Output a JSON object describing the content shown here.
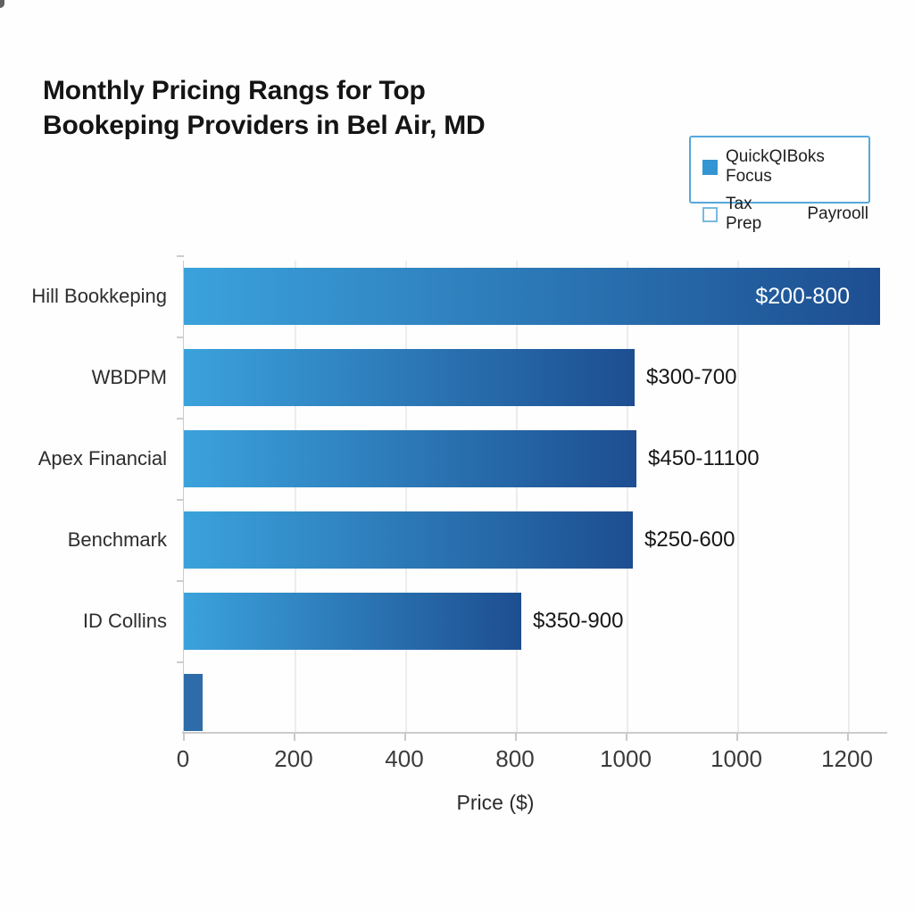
{
  "chart_data": {
    "type": "bar",
    "orientation": "horizontal",
    "title": "Monthly Pricing Rangs for Top\nBookeping Providers in Bel Air, MD",
    "xlabel": "Price ($)",
    "x_tick_labels": [
      "0",
      "200",
      "400",
      "800",
      "1000",
      "1000",
      "1200"
    ],
    "grid": true,
    "legend": {
      "position": "top-right",
      "items": [
        {
          "label": "QuickQIBoks Focus",
          "swatch": "filled"
        },
        {
          "label": "Tax Prep",
          "swatch": "outline"
        },
        {
          "label": "Payrooll",
          "swatch": "none"
        }
      ]
    },
    "bars": [
      {
        "category": "Hill Bookkeping",
        "label": "$200-800",
        "length_pct": 100,
        "label_inside": true
      },
      {
        "category": "WBDPM",
        "label": "$300-700",
        "length_pct": 64.7,
        "label_inside": false
      },
      {
        "category": "Apex Financial",
        "label": "$450-11100",
        "length_pct": 65.0,
        "label_inside": false
      },
      {
        "category": "Benchmark",
        "label": "$250-600",
        "length_pct": 64.5,
        "label_inside": false
      },
      {
        "category": "ID Collins",
        "label": "$350-900",
        "length_pct": 48.5,
        "label_inside": false
      },
      {
        "category": "",
        "label": "",
        "length_pct": 2.7,
        "label_inside": false,
        "solid_color": "#2d6ca9"
      }
    ],
    "colors": {
      "bar_gradient_start": "#3ba2dc",
      "bar_gradient_end": "#1d4e91",
      "legend_swatch_fill": "#3395d2",
      "legend_border": "#56a8da",
      "grid": "#ececec",
      "axis": "#cbcbcb",
      "title_text": "#141414",
      "category_text": "#2d2d2d",
      "value_text": "#161616",
      "value_text_inside": "#ffffff"
    }
  }
}
